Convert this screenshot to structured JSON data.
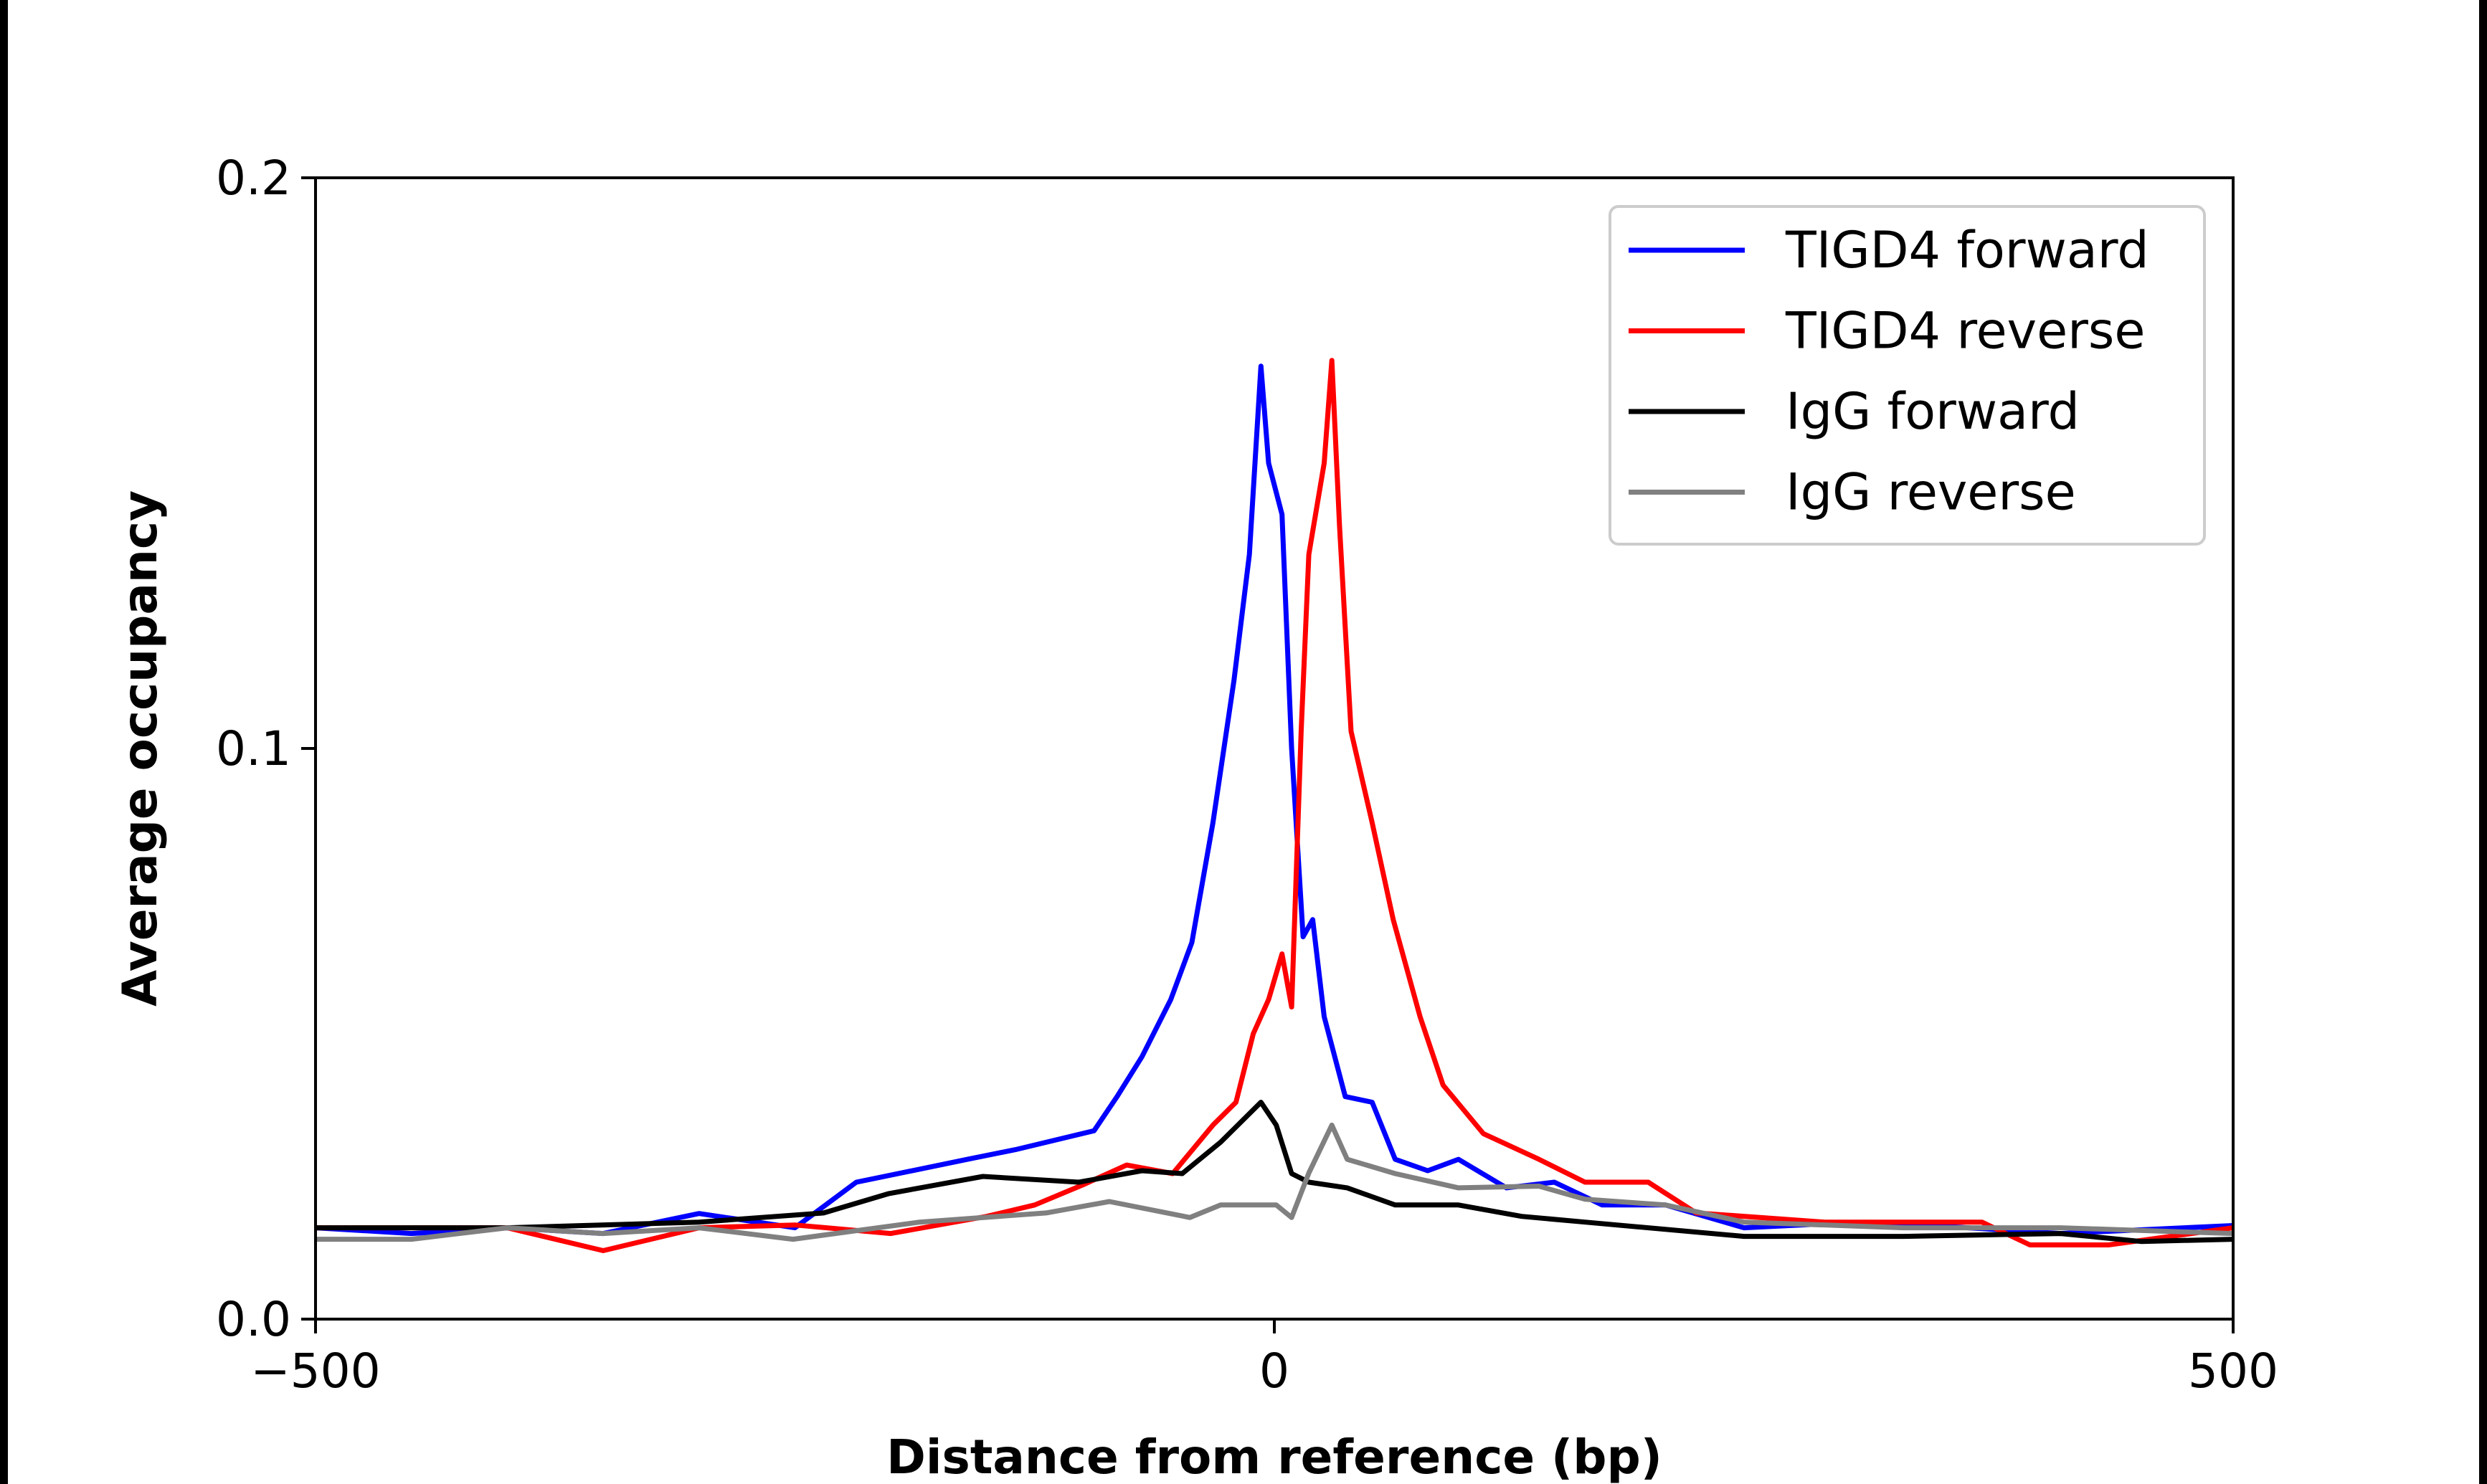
{
  "chart_data": {
    "type": "line",
    "title": "",
    "xlabel": "Distance from reference (bp)",
    "ylabel": "Average occupancy",
    "xlim": [
      -500,
      500
    ],
    "ylim": [
      0,
      0.2
    ],
    "xticks": [
      -500,
      0,
      500
    ],
    "xtick_labels": [
      "−500",
      "0",
      "500"
    ],
    "yticks": [
      0,
      0.1,
      0.2
    ],
    "ytick_labels": [
      "0.0",
      "0.1",
      "0.2"
    ],
    "grid": false,
    "legend_position": "top-right",
    "series": [
      {
        "name": "TIGD4 forward",
        "color": "#0000ff",
        "x": [
          -500,
          -450,
          -400,
          -350,
          -300,
          -250,
          -218,
          -160,
          -135,
          -94,
          -82,
          -69,
          -54,
          -43,
          -32,
          -21,
          -13,
          -7,
          -3,
          4,
          9,
          15,
          20,
          26,
          37,
          51,
          63,
          80,
          96,
          121,
          146,
          171,
          204,
          245,
          287,
          328,
          410,
          500
        ],
        "y": [
          0.016,
          0.015,
          0.016,
          0.015,
          0.0185,
          0.016,
          0.024,
          0.028,
          0.0297,
          0.033,
          0.039,
          0.046,
          0.056,
          0.066,
          0.087,
          0.112,
          0.134,
          0.167,
          0.15,
          0.141,
          0.1,
          0.067,
          0.07,
          0.053,
          0.039,
          0.038,
          0.028,
          0.026,
          0.028,
          0.023,
          0.024,
          0.02,
          0.02,
          0.016,
          0.0167,
          0.0167,
          0.015,
          0.0164
        ]
      },
      {
        "name": "TIGD4 reverse",
        "color": "#ff0000",
        "x": [
          -500,
          -400,
          -350,
          -300,
          -250,
          -200,
          -150,
          -125,
          -100,
          -77,
          -53,
          -32,
          -20,
          -11,
          -3,
          4,
          9,
          14,
          18,
          26,
          30,
          34,
          40,
          51,
          62,
          76,
          88,
          109,
          138,
          162,
          195,
          220,
          287,
          369,
          394,
          435,
          500
        ],
        "y": [
          0.016,
          0.016,
          0.012,
          0.016,
          0.0165,
          0.015,
          0.018,
          0.02,
          0.0235,
          0.027,
          0.0255,
          0.034,
          0.038,
          0.05,
          0.056,
          0.064,
          0.0547,
          0.103,
          0.134,
          0.15,
          0.168,
          0.139,
          0.103,
          0.087,
          0.07,
          0.053,
          0.041,
          0.0325,
          0.028,
          0.024,
          0.024,
          0.0186,
          0.017,
          0.017,
          0.013,
          0.013,
          0.016
        ]
      },
      {
        "name": "IgG forward",
        "color": "#000000",
        "x": [
          -500,
          -400,
          -300,
          -235,
          -201,
          -152,
          -102,
          -69,
          -48,
          -28,
          -7,
          1,
          9,
          18,
          38,
          63,
          96,
          129,
          162,
          245,
          328,
          410,
          452,
          500
        ],
        "y": [
          0.016,
          0.016,
          0.017,
          0.0186,
          0.022,
          0.025,
          0.024,
          0.026,
          0.0255,
          0.031,
          0.038,
          0.034,
          0.0255,
          0.024,
          0.023,
          0.02,
          0.02,
          0.018,
          0.017,
          0.0145,
          0.0145,
          0.015,
          0.0136,
          0.014
        ]
      },
      {
        "name": "IgG reverse",
        "color": "#808080",
        "x": [
          -500,
          -450,
          -400,
          -350,
          -300,
          -251,
          -185,
          -119,
          -86,
          -44,
          -28,
          1,
          9,
          18,
          30,
          38,
          63,
          96,
          138,
          162,
          204,
          245,
          328,
          410,
          500
        ],
        "y": [
          0.014,
          0.014,
          0.016,
          0.015,
          0.016,
          0.014,
          0.017,
          0.0186,
          0.0206,
          0.0178,
          0.02,
          0.02,
          0.0178,
          0.0256,
          0.034,
          0.028,
          0.0255,
          0.023,
          0.0233,
          0.021,
          0.02,
          0.017,
          0.016,
          0.016,
          0.015
        ]
      }
    ]
  }
}
